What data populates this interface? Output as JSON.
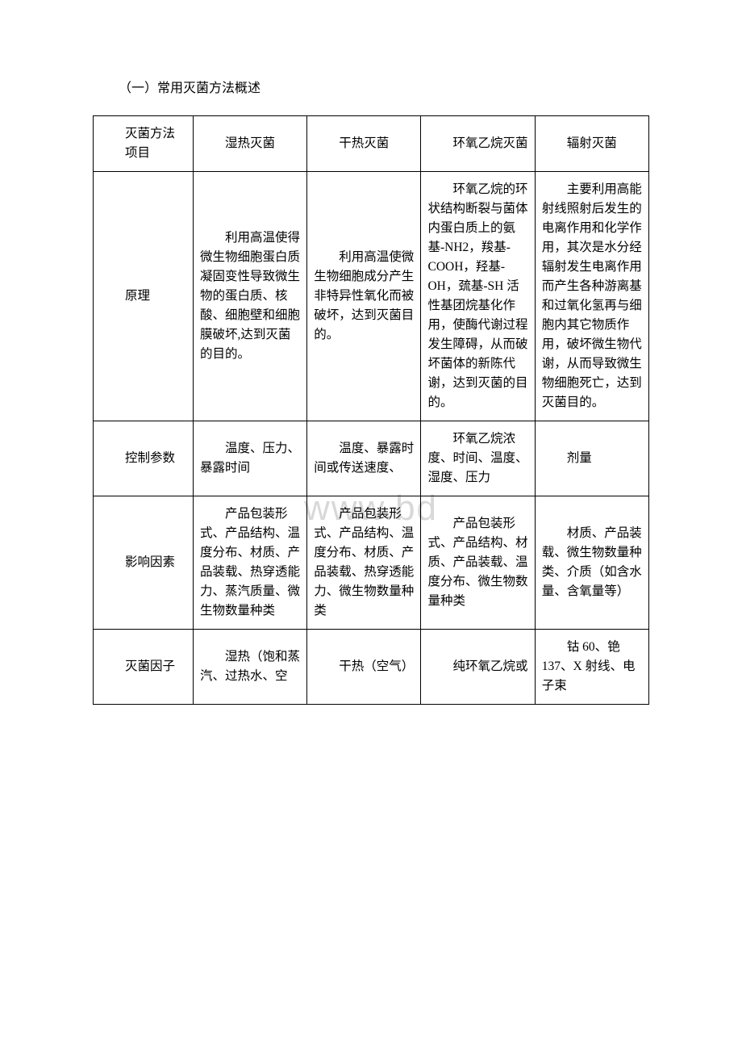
{
  "document": {
    "title": "（一）常用灭菌方法概述",
    "watermark": "www.bd"
  },
  "table": {
    "header": {
      "label_top": "灭菌方法",
      "label_bottom": "项目",
      "col1": "湿热灭菌",
      "col2": "干热灭菌",
      "col3": "环氧乙烷灭菌",
      "col4": "辐射灭菌"
    },
    "rows": [
      {
        "label": "原理",
        "c1": "利用高温使得微生物细胞蛋白质凝固变性导致微生物的蛋白质、核酸、细胞壁和细胞膜破坏,达到灭菌的目的。",
        "c2": "利用高温使微生物细胞成分产生非特异性氧化而被破坏，达到灭菌目的。",
        "c3": "环氧乙烷的环状结构断裂与菌体内蛋白质上的氨基-NH2，羧基-COOH，羟基-OH，巯基-SH 活性基团烷基化作用，使酶代谢过程发生障碍，从而破坏菌体的新陈代谢，达到灭菌的目的。",
        "c4": "主要利用高能射线照射后发生的电离作用和化学作用，其次是水分经辐射发生电离作用而产生各种游离基和过氧化氢再与细胞内其它物质作用，破坏微生物代谢，从而导致微生物细胞死亡，达到灭菌目的。"
      },
      {
        "label": "控制参数",
        "c1": "温度、压力、暴露时间",
        "c2": "温度、暴露时间或传送速度、",
        "c3": "环氧乙烷浓度、时间、温度、湿度、压力",
        "c4": "剂量"
      },
      {
        "label": "影响因素",
        "c1": "产品包装形式、产品结构、温度分布、材质、产品装载、热穿透能力、蒸汽质量、微生物数量种类",
        "c2": "产品包装形式、产品结构、温度分布、材质、产品装载、热穿透能力、微生物数量种类",
        "c3": "产品包装形式、产品结构、材质、产品装载、温度分布、微生物数量种类",
        "c4": "材质、产品装载、微生物数量种类、介质（如含水量、含氧量等）"
      },
      {
        "label": "灭菌因子",
        "c1": "湿热（饱和蒸汽、过热水、空",
        "c2": "干热（空气）",
        "c3": "纯环氧乙烷或",
        "c4": "钴 60、铯 137、X 射线、电子束"
      }
    ]
  },
  "style": {
    "background_color": "#ffffff",
    "text_color": "#000000",
    "border_color": "#000000",
    "watermark_color": "#d8d8d8",
    "body_width": 920,
    "body_height": 1302,
    "title_fontsize": 16,
    "cell_fontsize": 15.5,
    "line_height": 1.55,
    "col_header_width_pct": 18,
    "col_data_width_pct": 20.5
  }
}
